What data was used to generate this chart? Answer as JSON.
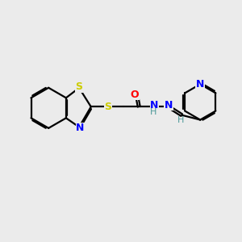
{
  "bg_color": "#ebebeb",
  "bond_color": "#000000",
  "S_color": "#cccc00",
  "N_color": "#0000ff",
  "O_color": "#ff0000",
  "H_color": "#4d9999",
  "line_width": 1.6,
  "dbo": 0.055,
  "figsize": [
    3.0,
    3.0
  ],
  "dpi": 100,
  "xlim": [
    0,
    10
  ],
  "ylim": [
    0,
    10
  ]
}
